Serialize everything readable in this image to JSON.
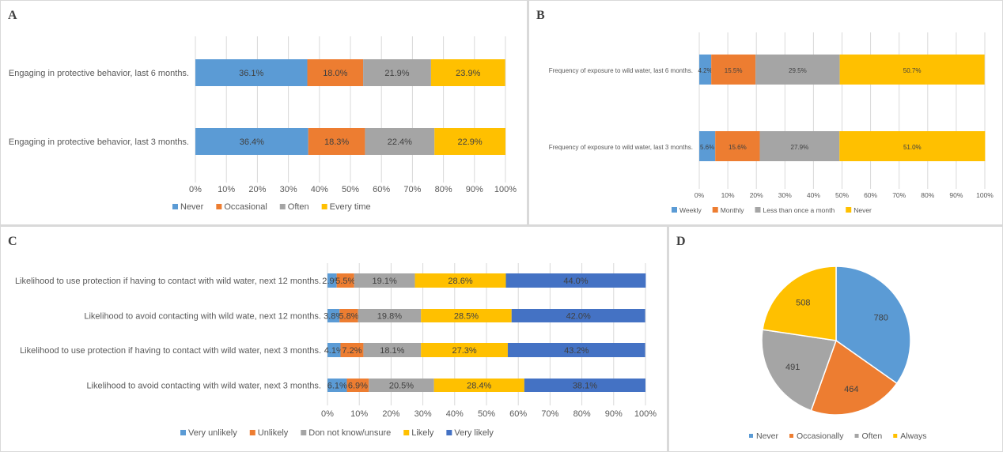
{
  "panels": {
    "a": "A",
    "b": "B",
    "c": "C",
    "d": "D"
  },
  "colors": {
    "blue": "#5b9bd5",
    "orange": "#ed7d31",
    "gray": "#a5a5a5",
    "yellow": "#ffc000",
    "darkblue": "#4472c4",
    "grid": "#d9d9d9"
  },
  "chart_data": [
    {
      "id": "A",
      "type": "bar",
      "orientation": "horizontal-stacked-100",
      "title": "",
      "categories": [
        "Engaging in protective behavior, last 6 months.",
        "Engaging in protective behavior, last 3 months."
      ],
      "series": [
        {
          "name": "Never",
          "color": "#5b9bd5",
          "values": [
            36.1,
            36.4
          ]
        },
        {
          "name": "Occasional",
          "color": "#ed7d31",
          "values": [
            18.0,
            18.3
          ]
        },
        {
          "name": "Often",
          "color": "#a5a5a5",
          "values": [
            21.9,
            22.4
          ]
        },
        {
          "name": "Every time",
          "color": "#ffc000",
          "values": [
            23.9,
            22.9
          ]
        }
      ],
      "xticks": [
        "0%",
        "10%",
        "20%",
        "30%",
        "40%",
        "50%",
        "60%",
        "70%",
        "80%",
        "90%",
        "100%"
      ],
      "xlim": [
        0,
        100
      ],
      "grid": true,
      "legend": "bottom"
    },
    {
      "id": "B",
      "type": "bar",
      "orientation": "horizontal-stacked-100",
      "title": "",
      "categories": [
        "Frequency of exposure to wild water, last 6 months.",
        "Frequency of exposure to wild water, last 3 months."
      ],
      "series": [
        {
          "name": "Weekly",
          "color": "#5b9bd5",
          "values": [
            4.2,
            5.6
          ]
        },
        {
          "name": "Monthly",
          "color": "#ed7d31",
          "values": [
            15.5,
            15.6
          ]
        },
        {
          "name": "Less than once a month",
          "color": "#a5a5a5",
          "values": [
            29.5,
            27.9
          ]
        },
        {
          "name": "Never",
          "color": "#ffc000",
          "values": [
            50.7,
            51.0
          ]
        }
      ],
      "xticks": [
        "0%",
        "10%",
        "20%",
        "30%",
        "40%",
        "50%",
        "60%",
        "70%",
        "80%",
        "90%",
        "100%"
      ],
      "xlim": [
        0,
        100
      ],
      "grid": true,
      "legend": "bottom-left"
    },
    {
      "id": "C",
      "type": "bar",
      "orientation": "horizontal-stacked-100",
      "title": "",
      "categories": [
        "Likelihood to use protection if having to contact with wild water, next 12 months.",
        "Likelihood to avoid contacting with wild wate, next 12 months.",
        "Likelihood to use protection if having to contact with wild water, next 3 months.",
        "Likelihood to avoid contacting with wild water, next 3 months."
      ],
      "series": [
        {
          "name": "Very unlikely",
          "color": "#5b9bd5",
          "values": [
            2.9,
            3.8,
            4.1,
            6.1
          ]
        },
        {
          "name": "Unlikely",
          "color": "#ed7d31",
          "values": [
            5.5,
            5.8,
            7.2,
            6.9
          ]
        },
        {
          "name": "Don not know/unsure",
          "color": "#a5a5a5",
          "values": [
            19.1,
            19.8,
            18.1,
            20.5
          ]
        },
        {
          "name": "Likely",
          "color": "#ffc000",
          "values": [
            28.6,
            28.5,
            27.3,
            28.4
          ]
        },
        {
          "name": "Very likely",
          "color": "#4472c4",
          "values": [
            44.0,
            42.0,
            43.2,
            38.1
          ]
        }
      ],
      "xticks": [
        "0%",
        "10%",
        "20%",
        "30%",
        "40%",
        "50%",
        "60%",
        "70%",
        "80%",
        "90%",
        "100%"
      ],
      "xlim": [
        0,
        100
      ],
      "grid": true,
      "legend": "bottom"
    },
    {
      "id": "D",
      "type": "pie",
      "title": "",
      "categories": [
        "Never",
        "Occasionally",
        "Often",
        "Always"
      ],
      "values": [
        780,
        464,
        491,
        508
      ],
      "colors": [
        "#5b9bd5",
        "#ed7d31",
        "#a5a5a5",
        "#ffc000"
      ],
      "legend": "bottom"
    }
  ]
}
